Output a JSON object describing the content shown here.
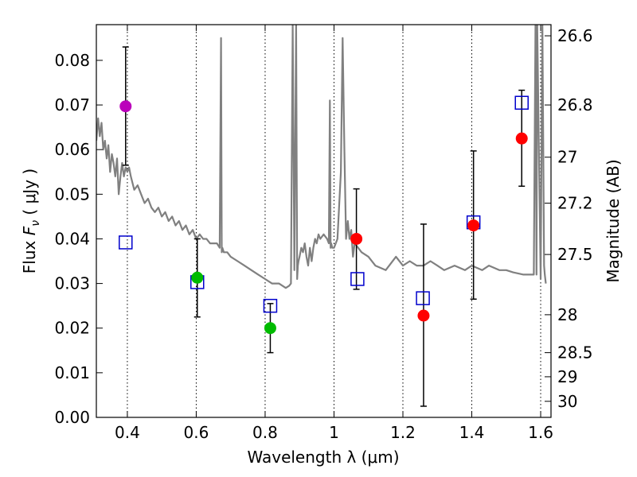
{
  "chart_data": {
    "type": "scatter",
    "xlabel": "Wavelength  λ (μm)",
    "ylabel": "Flux  F_ν  ( μJy )",
    "ylabel_parts": {
      "prefix": "Flux  ",
      "symbol": "F",
      "subscript": "ν",
      "unit": "  ( μJy )"
    },
    "y2label": "Magnitude (AB)",
    "xlim": [
      0.31,
      1.63
    ],
    "ylim": [
      0.0,
      0.088
    ],
    "xticks": [
      0.4,
      0.6,
      0.8,
      1.0,
      1.2,
      1.4,
      1.6
    ],
    "xtick_labels": [
      "0.4",
      "0.6",
      "0.8",
      "1",
      "1.2",
      "1.4",
      "1.6"
    ],
    "yticks": [
      0.0,
      0.01,
      0.02,
      0.03,
      0.04,
      0.05,
      0.06,
      0.07,
      0.08
    ],
    "ytick_labels": [
      "0.00",
      "0.01",
      "0.02",
      "0.03",
      "0.04",
      "0.05",
      "0.06",
      "0.07",
      "0.08"
    ],
    "grid": {
      "x": true,
      "y": false,
      "style": "dotted"
    },
    "magnitude_ticks": [
      {
        "label": "26.6",
        "flux": 0.0855
      },
      {
        "label": "26.8",
        "flux": 0.07
      },
      {
        "label": "27",
        "flux": 0.0583
      },
      {
        "label": "27.2",
        "flux": 0.048
      },
      {
        "label": "27.5",
        "flux": 0.0365
      },
      {
        "label": "28",
        "flux": 0.023
      },
      {
        "label": "28.5",
        "flux": 0.0145
      },
      {
        "label": "29",
        "flux": 0.0091
      },
      {
        "label": "30",
        "flux": 0.0036
      }
    ],
    "observed": [
      {
        "x": 0.395,
        "y": 0.0697,
        "err_low": 0.0565,
        "err_high": 0.083,
        "color": "#bb00bb"
      },
      {
        "x": 0.603,
        "y": 0.0313,
        "err_low": 0.0225,
        "err_high": 0.04,
        "color": "#00bb00"
      },
      {
        "x": 0.815,
        "y": 0.02,
        "err_low": 0.0145,
        "err_high": 0.0255,
        "color": "#00bb00"
      },
      {
        "x": 1.065,
        "y": 0.04,
        "err_low": 0.0287,
        "err_high": 0.0512,
        "color": "#ff0000"
      },
      {
        "x": 1.26,
        "y": 0.0228,
        "err_low": 0.0025,
        "err_high": 0.0433,
        "color": "#ff0000"
      },
      {
        "x": 1.405,
        "y": 0.043,
        "err_low": 0.0265,
        "err_high": 0.0597,
        "color": "#ff0000"
      },
      {
        "x": 1.545,
        "y": 0.0625,
        "err_low": 0.0518,
        "err_high": 0.0733,
        "color": "#ff0000"
      }
    ],
    "model_points": [
      {
        "x": 0.395,
        "y": 0.0392
      },
      {
        "x": 0.603,
        "y": 0.0303
      },
      {
        "x": 0.815,
        "y": 0.025
      },
      {
        "x": 1.068,
        "y": 0.031
      },
      {
        "x": 1.258,
        "y": 0.0267
      },
      {
        "x": 1.405,
        "y": 0.0437
      },
      {
        "x": 1.545,
        "y": 0.0705
      }
    ],
    "model_spectrum": {
      "color": "#808080",
      "x": [
        0.31,
        0.315,
        0.32,
        0.325,
        0.33,
        0.335,
        0.34,
        0.345,
        0.35,
        0.355,
        0.36,
        0.365,
        0.37,
        0.375,
        0.38,
        0.385,
        0.39,
        0.395,
        0.4,
        0.405,
        0.41,
        0.42,
        0.43,
        0.44,
        0.45,
        0.46,
        0.47,
        0.48,
        0.49,
        0.5,
        0.51,
        0.52,
        0.53,
        0.54,
        0.55,
        0.56,
        0.57,
        0.58,
        0.59,
        0.6,
        0.61,
        0.62,
        0.63,
        0.64,
        0.65,
        0.66,
        0.668,
        0.672,
        0.674,
        0.676,
        0.68,
        0.69,
        0.7,
        0.72,
        0.74,
        0.76,
        0.78,
        0.8,
        0.82,
        0.84,
        0.86,
        0.87,
        0.875,
        0.88,
        0.885,
        0.89,
        0.893,
        0.895,
        0.897,
        0.9,
        0.905,
        0.91,
        0.915,
        0.92,
        0.925,
        0.93,
        0.935,
        0.94,
        0.945,
        0.95,
        0.955,
        0.96,
        0.97,
        0.98,
        0.985,
        0.988,
        0.99,
        0.992,
        0.995,
        1.0,
        1.01,
        1.02,
        1.025,
        1.03,
        1.035,
        1.04,
        1.045,
        1.05,
        1.055,
        1.06,
        1.07,
        1.08,
        1.1,
        1.12,
        1.15,
        1.18,
        1.2,
        1.22,
        1.24,
        1.26,
        1.28,
        1.3,
        1.32,
        1.35,
        1.38,
        1.4,
        1.43,
        1.45,
        1.48,
        1.5,
        1.52,
        1.55,
        1.58,
        1.585,
        1.588,
        1.59,
        1.6,
        1.605,
        1.61,
        1.612,
        1.615
      ],
      "y": [
        0.062,
        0.067,
        0.063,
        0.066,
        0.06,
        0.062,
        0.058,
        0.061,
        0.055,
        0.059,
        0.057,
        0.054,
        0.058,
        0.05,
        0.054,
        0.057,
        0.054,
        0.056,
        0.055,
        0.056,
        0.054,
        0.051,
        0.052,
        0.05,
        0.048,
        0.049,
        0.047,
        0.046,
        0.047,
        0.045,
        0.046,
        0.044,
        0.045,
        0.043,
        0.044,
        0.042,
        0.043,
        0.041,
        0.042,
        0.04,
        0.041,
        0.04,
        0.04,
        0.039,
        0.039,
        0.039,
        0.038,
        0.085,
        0.037,
        0.038,
        0.037,
        0.037,
        0.036,
        0.035,
        0.034,
        0.033,
        0.032,
        0.031,
        0.03,
        0.03,
        0.029,
        0.0295,
        0.03,
        0.088,
        0.033,
        0.088,
        0.031,
        0.034,
        0.035,
        0.036,
        0.038,
        0.037,
        0.039,
        0.036,
        0.034,
        0.038,
        0.035,
        0.038,
        0.04,
        0.039,
        0.041,
        0.04,
        0.041,
        0.04,
        0.039,
        0.071,
        0.038,
        0.039,
        0.038,
        0.038,
        0.04,
        0.055,
        0.085,
        0.06,
        0.04,
        0.044,
        0.04,
        0.042,
        0.036,
        0.039,
        0.038,
        0.037,
        0.036,
        0.034,
        0.033,
        0.036,
        0.034,
        0.035,
        0.034,
        0.034,
        0.035,
        0.034,
        0.033,
        0.034,
        0.033,
        0.034,
        0.033,
        0.034,
        0.033,
        0.033,
        0.0325,
        0.032,
        0.032,
        0.088,
        0.032,
        0.088,
        0.031,
        0.088,
        0.034,
        0.032,
        0.03
      ]
    }
  }
}
